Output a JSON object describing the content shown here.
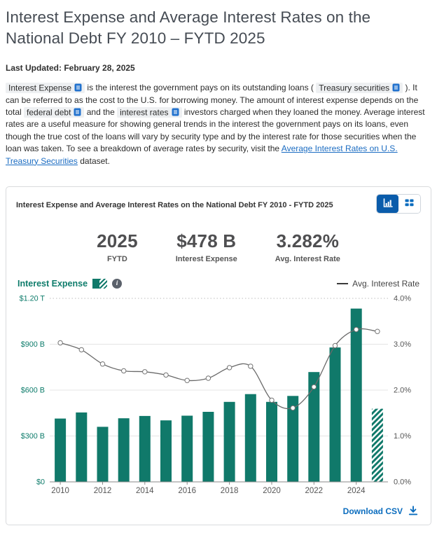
{
  "page": {
    "title": "Interest Expense and Average Interest Rates on the National Debt FY 2010 – FYTD 2025",
    "last_updated": "Last Updated: February 28, 2025",
    "intro_segments": [
      {
        "type": "term",
        "text": "Interest Expense"
      },
      {
        "type": "text",
        "text": " is the interest the government pays on its outstanding loans ( "
      },
      {
        "type": "term",
        "text": "Treasury securities"
      },
      {
        "type": "text",
        "text": " ). It can be referred to as the cost to the U.S. for borrowing money. The amount of interest expense depends on the total "
      },
      {
        "type": "term",
        "text": "federal debt"
      },
      {
        "type": "text",
        "text": " and the "
      },
      {
        "type": "term",
        "text": "interest rates"
      },
      {
        "type": "text",
        "text": " investors charged when they loaned the money. Average interest rates are a useful measure for showing general trends in the interest the government pays on its loans, even though the true cost of the loans will vary by security type and by the interest rate for those securities when the loan was taken. To see a breakdown of average rates by security, visit the "
      },
      {
        "type": "link",
        "text": "Average Interest Rates on U.S. Treasury Securities"
      },
      {
        "type": "text",
        "text": " dataset."
      }
    ]
  },
  "card": {
    "title": "Interest Expense and Average Interest Rates on the National Debt FY 2010 - FYTD 2025",
    "stats": [
      {
        "value": "2025",
        "label": "FYTD"
      },
      {
        "value": "$478 B",
        "label": "Interest Expense"
      },
      {
        "value": "3.282%",
        "label": "Avg. Interest Rate"
      }
    ],
    "legend": {
      "bar_label": "Interest Expense",
      "line_label": "Avg. Interest Rate"
    },
    "download_label": "Download CSV"
  },
  "icons": {
    "book": "book-icon",
    "chart_view": "bar-chart-icon",
    "table_view": "table-icon",
    "info": "info-icon",
    "download": "download-icon"
  },
  "colors": {
    "bar_green": "#10796a",
    "axis_green": "#0e7c6b",
    "line_gray": "#6a6a6a",
    "brand_blue": "#0a6cbe",
    "toggle_blue": "#0a5cab",
    "link_blue": "#1b6cc2"
  },
  "chart_data": {
    "type": "combo",
    "title": "Interest Expense and Average Interest Rates on the National Debt FY 2010 - FYTD 2025",
    "categories": [
      2010,
      2011,
      2012,
      2013,
      2014,
      2015,
      2016,
      2017,
      2018,
      2019,
      2020,
      2021,
      2022,
      2023,
      2024,
      2025
    ],
    "series": [
      {
        "name": "Interest Expense",
        "type": "bar",
        "unit": "USD billions",
        "color": "#10796a",
        "values": [
          414,
          454,
          360,
          416,
          431,
          402,
          433,
          458,
          523,
          574,
          523,
          562,
          718,
          879,
          1133,
          478
        ],
        "note": "2025 bar is FYTD and rendered hatched"
      },
      {
        "name": "Avg. Interest Rate",
        "type": "line",
        "unit": "percent",
        "color": "#6a6a6a",
        "values": [
          3.03,
          2.88,
          2.57,
          2.42,
          2.4,
          2.33,
          2.21,
          2.26,
          2.49,
          2.52,
          1.78,
          1.61,
          2.07,
          2.97,
          3.32,
          3.28
        ]
      }
    ],
    "left_axis": {
      "ticks": [
        "$1.20 T",
        "$900 B",
        "$600 B",
        "$300 B",
        "$0"
      ],
      "min": 0,
      "max": 1200
    },
    "right_axis": {
      "ticks": [
        "4.0%",
        "3.0%",
        "2.0%",
        "1.0%",
        "0.0%"
      ],
      "min": 0,
      "max": 4.0
    },
    "x_ticks": [
      2010,
      2012,
      2014,
      2016,
      2018,
      2020,
      2022,
      2024
    ],
    "grid": true,
    "legend_position": "top"
  }
}
